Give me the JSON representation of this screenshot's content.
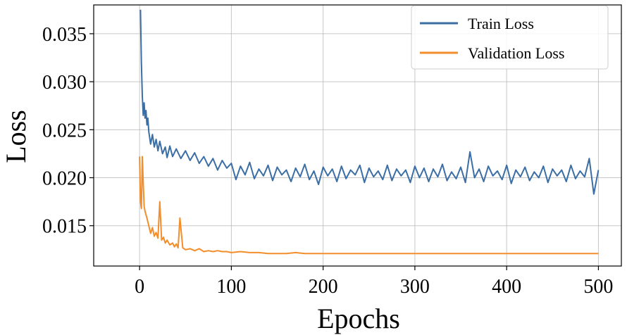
{
  "chart_data": {
    "type": "line",
    "title": "",
    "xlabel": "Epochs",
    "ylabel": "Loss",
    "xlim": [
      -50,
      525
    ],
    "ylim": [
      0.0108,
      0.038
    ],
    "xticks": [
      0,
      100,
      200,
      300,
      400,
      500
    ],
    "xtick_labels": [
      "0",
      "100",
      "200",
      "300",
      "400",
      "500"
    ],
    "yticks": [
      0.015,
      0.02,
      0.025,
      0.03,
      0.035
    ],
    "ytick_labels": [
      "0.015",
      "0.020",
      "0.025",
      "0.030",
      "0.035"
    ],
    "grid": true,
    "legend_position": "top-right",
    "series": [
      {
        "name": "Train Loss",
        "color": "#3a6ea5",
        "x": [
          1,
          2,
          3,
          4,
          5,
          6,
          7,
          8,
          9,
          10,
          12,
          14,
          16,
          18,
          20,
          22,
          25,
          28,
          30,
          33,
          36,
          40,
          45,
          50,
          55,
          60,
          65,
          70,
          75,
          80,
          85,
          90,
          95,
          100,
          105,
          110,
          115,
          120,
          125,
          130,
          135,
          140,
          145,
          150,
          155,
          160,
          165,
          170,
          175,
          180,
          185,
          190,
          195,
          200,
          205,
          210,
          215,
          220,
          225,
          230,
          235,
          240,
          245,
          250,
          255,
          260,
          265,
          270,
          275,
          280,
          285,
          290,
          295,
          300,
          305,
          310,
          315,
          320,
          325,
          330,
          335,
          340,
          345,
          350,
          355,
          360,
          365,
          370,
          375,
          380,
          385,
          390,
          395,
          400,
          405,
          410,
          415,
          420,
          425,
          430,
          435,
          440,
          445,
          450,
          455,
          460,
          465,
          470,
          475,
          480,
          485,
          490,
          495,
          500
        ],
        "values": [
          0.0375,
          0.032,
          0.0285,
          0.0265,
          0.0278,
          0.0262,
          0.027,
          0.0255,
          0.0262,
          0.0248,
          0.0235,
          0.0245,
          0.0232,
          0.024,
          0.0228,
          0.0238,
          0.0225,
          0.0232,
          0.0221,
          0.0233,
          0.0222,
          0.023,
          0.022,
          0.0228,
          0.0218,
          0.0226,
          0.0215,
          0.0222,
          0.0212,
          0.022,
          0.0208,
          0.0218,
          0.021,
          0.0215,
          0.0198,
          0.0212,
          0.0203,
          0.0216,
          0.0199,
          0.0209,
          0.0202,
          0.0213,
          0.0197,
          0.0211,
          0.0203,
          0.0208,
          0.0196,
          0.021,
          0.0201,
          0.0214,
          0.0198,
          0.0207,
          0.0193,
          0.0211,
          0.0202,
          0.0209,
          0.0196,
          0.0212,
          0.0199,
          0.0208,
          0.0203,
          0.0213,
          0.0195,
          0.021,
          0.0201,
          0.0207,
          0.0198,
          0.0213,
          0.0197,
          0.0209,
          0.0202,
          0.0208,
          0.0195,
          0.0212,
          0.02,
          0.021,
          0.0196,
          0.0209,
          0.0201,
          0.0214,
          0.0197,
          0.0206,
          0.0199,
          0.0211,
          0.0195,
          0.0227,
          0.02,
          0.0209,
          0.0196,
          0.0212,
          0.0202,
          0.0207,
          0.0198,
          0.0213,
          0.0194,
          0.0208,
          0.0201,
          0.0211,
          0.0197,
          0.0206,
          0.02,
          0.0212,
          0.0195,
          0.0209,
          0.0202,
          0.0208,
          0.0196,
          0.0213,
          0.0199,
          0.0207,
          0.0201,
          0.022,
          0.0183,
          0.0208
        ]
      },
      {
        "name": "Validation Loss",
        "color": "#f28e2b",
        "x": [
          0,
          1,
          2,
          3,
          4,
          5,
          6,
          8,
          10,
          12,
          14,
          16,
          18,
          20,
          22,
          24,
          26,
          28,
          30,
          33,
          36,
          38,
          40,
          42,
          44,
          47,
          50,
          55,
          60,
          65,
          70,
          75,
          80,
          85,
          90,
          95,
          100,
          110,
          120,
          130,
          140,
          150,
          160,
          170,
          180,
          190,
          200,
          250,
          300,
          350,
          400,
          450,
          500
        ],
        "values": [
          0.0222,
          0.0175,
          0.0168,
          0.0222,
          0.0195,
          0.017,
          0.0165,
          0.0158,
          0.015,
          0.0142,
          0.0148,
          0.0139,
          0.0143,
          0.0137,
          0.0175,
          0.0135,
          0.0138,
          0.0132,
          0.0135,
          0.013,
          0.0132,
          0.0128,
          0.0131,
          0.0127,
          0.0158,
          0.0127,
          0.0125,
          0.0126,
          0.0124,
          0.0126,
          0.0123,
          0.0124,
          0.0123,
          0.0124,
          0.0123,
          0.0123,
          0.0122,
          0.0123,
          0.0122,
          0.0122,
          0.0121,
          0.0121,
          0.0121,
          0.0122,
          0.0121,
          0.0121,
          0.0121,
          0.0121,
          0.0121,
          0.0121,
          0.0121,
          0.0121,
          0.0121
        ]
      }
    ]
  }
}
